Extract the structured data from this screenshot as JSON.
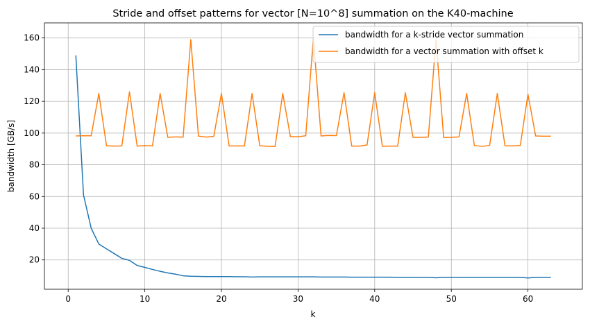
{
  "chart_data": {
    "type": "line",
    "title": "Stride and offset patterns for vector [N=10^8] summation on the K40-machine",
    "xlabel": "k",
    "ylabel": "bandwidth [GB/s]",
    "xlim": [
      -3.1,
      67.1
    ],
    "ylim": [
      1.5,
      169.5
    ],
    "xticks": [
      0,
      10,
      20,
      30,
      40,
      50,
      60
    ],
    "yticks": [
      20,
      40,
      60,
      80,
      100,
      120,
      140,
      160
    ],
    "grid": true,
    "legend_position": "top-right",
    "x": [
      1,
      2,
      3,
      4,
      5,
      6,
      7,
      8,
      9,
      10,
      11,
      12,
      13,
      14,
      15,
      16,
      17,
      18,
      19,
      20,
      21,
      22,
      23,
      24,
      25,
      26,
      27,
      28,
      29,
      30,
      31,
      32,
      33,
      34,
      35,
      36,
      37,
      38,
      39,
      40,
      41,
      42,
      43,
      44,
      45,
      46,
      47,
      48,
      49,
      50,
      51,
      52,
      53,
      54,
      55,
      56,
      57,
      58,
      59,
      60,
      61,
      62,
      63
    ],
    "series": [
      {
        "name": "bandwidth for a k-stride vector summation",
        "color": "#1f77b4",
        "values": [
          149,
          61,
          40,
          30,
          27,
          24,
          21,
          19.7,
          16.5,
          15.3,
          14,
          12.8,
          11.8,
          11,
          10,
          9.7,
          9.6,
          9.5,
          9.5,
          9.5,
          9.5,
          9.4,
          9.4,
          9.2,
          9.3,
          9.3,
          9.3,
          9.3,
          9.3,
          9.3,
          9.3,
          9.3,
          9.2,
          9.2,
          9.2,
          9.2,
          9.1,
          9.1,
          9.1,
          9.1,
          9.1,
          9.1,
          9.0,
          9.0,
          9.0,
          9.0,
          9.0,
          8.7,
          9.0,
          9.0,
          9.0,
          9.0,
          9.0,
          9.0,
          9.0,
          9.0,
          9.0,
          9.0,
          9.0,
          8.6,
          9.0,
          9.0,
          9.0
        ]
      },
      {
        "name": "bandwidth for a vector summation with offset k",
        "color": "#ff7f0e",
        "values": [
          98.2,
          98.3,
          98.3,
          125,
          92,
          91.8,
          91.9,
          126,
          91.8,
          92.1,
          91.9,
          125,
          97.3,
          97.6,
          97.4,
          159,
          98.1,
          97.5,
          97.9,
          125,
          91.9,
          91.9,
          91.9,
          125,
          92,
          91.7,
          91.5,
          125,
          97.7,
          97.7,
          98.3,
          160,
          98.2,
          98.5,
          98.4,
          125.5,
          91.8,
          91.8,
          92.5,
          125.5,
          91.7,
          91.8,
          91.8,
          125.5,
          97.3,
          97.3,
          97.5,
          159,
          97.2,
          97.3,
          97.6,
          125,
          92.2,
          91.6,
          92.2,
          125,
          92,
          91.9,
          92.2,
          124.5,
          98.2,
          98,
          98
        ]
      }
    ]
  }
}
